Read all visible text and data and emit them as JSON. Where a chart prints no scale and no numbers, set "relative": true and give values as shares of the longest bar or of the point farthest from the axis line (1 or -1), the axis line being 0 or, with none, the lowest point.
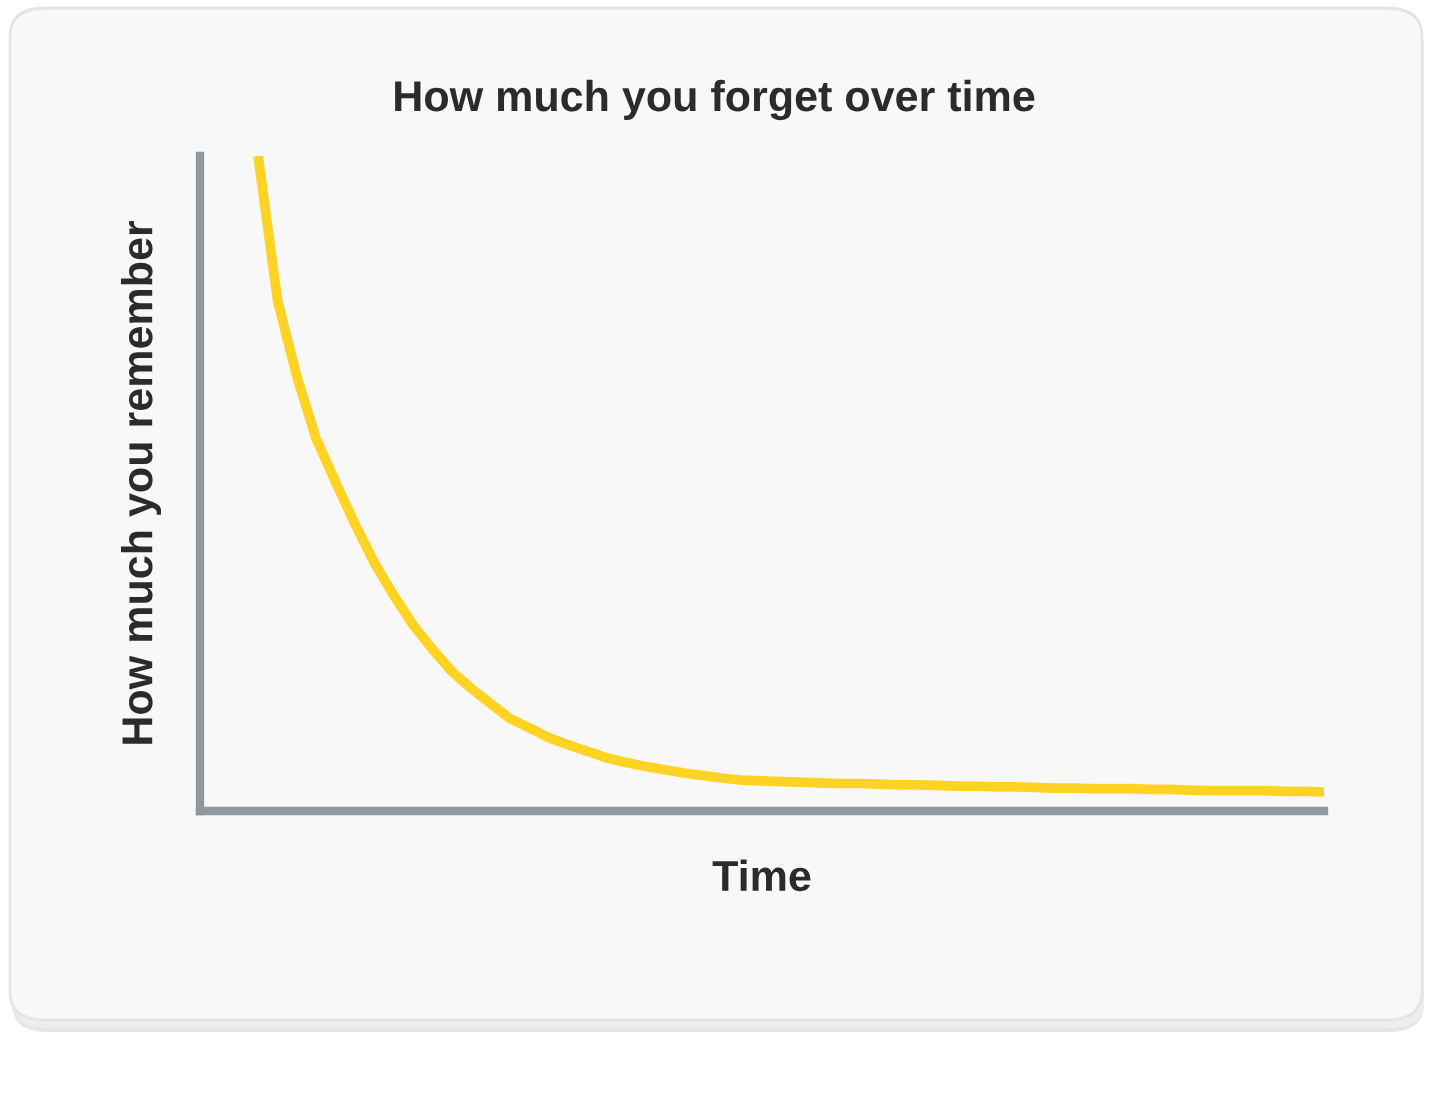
{
  "chart_data": {
    "type": "line",
    "title": "How much you forget over time",
    "xlabel": "Time",
    "ylabel": "How much you remember",
    "relative": true,
    "categories": [
      null,
      null,
      null,
      null,
      null,
      null,
      null,
      null,
      null,
      null,
      null,
      null,
      null,
      null,
      null,
      null,
      null,
      null,
      null,
      null,
      null,
      null,
      null,
      null,
      null,
      null,
      null,
      null,
      null,
      null,
      null,
      null,
      null,
      null,
      null,
      null,
      null,
      null,
      null,
      null,
      null,
      null,
      null,
      null,
      null,
      null,
      null,
      null,
      null,
      null,
      null,
      null,
      null,
      null,
      null,
      null,
      null,
      null,
      null
    ],
    "series": [
      {
        "color": "#ffd324",
        "values": [
          null,
          null,
          null,
          1.0,
          0.78,
          0.663,
          0.568,
          0.502,
          0.438,
          0.379,
          0.329,
          0.284,
          0.247,
          0.213,
          0.187,
          0.164,
          0.141,
          0.127,
          0.112,
          0.101,
          0.091,
          0.081,
          0.074,
          0.068,
          0.063,
          0.058,
          0.054,
          0.05,
          0.047,
          0.046,
          0.045,
          0.044,
          0.043,
          0.042,
          0.042,
          0.041,
          0.04,
          0.04,
          0.039,
          0.038,
          0.038,
          0.037,
          0.037,
          0.036,
          0.035,
          0.035,
          0.034,
          0.034,
          0.034,
          0.033,
          0.033,
          0.032,
          0.031,
          0.031,
          0.031,
          0.031,
          0.03,
          0.03,
          0.029
        ]
      }
    ]
  }
}
